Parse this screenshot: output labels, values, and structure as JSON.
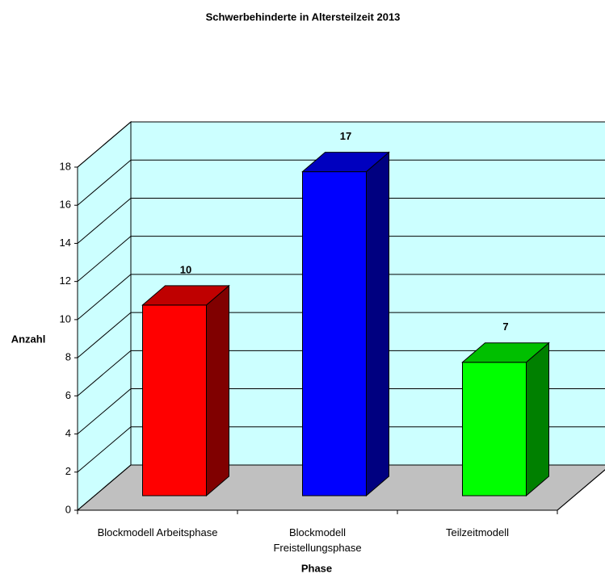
{
  "chart_data": {
    "type": "bar3d",
    "title": "Schwerbehinderte in Altersteilzeit 2013",
    "categories": [
      "Blockmodell Arbeitsphase",
      "Blockmodell Freistellungsphase",
      "Teilzeitmodell"
    ],
    "values": [
      10,
      17,
      7
    ],
    "colors": [
      "#ff0000",
      "#0000ff",
      "#00ff00"
    ],
    "xlabel": "Phase",
    "ylabel": "Anzahl",
    "ylim": [
      0,
      18
    ],
    "yticks": [
      0,
      2,
      4,
      6,
      8,
      10,
      12,
      14,
      16,
      18
    ],
    "grid": true
  }
}
